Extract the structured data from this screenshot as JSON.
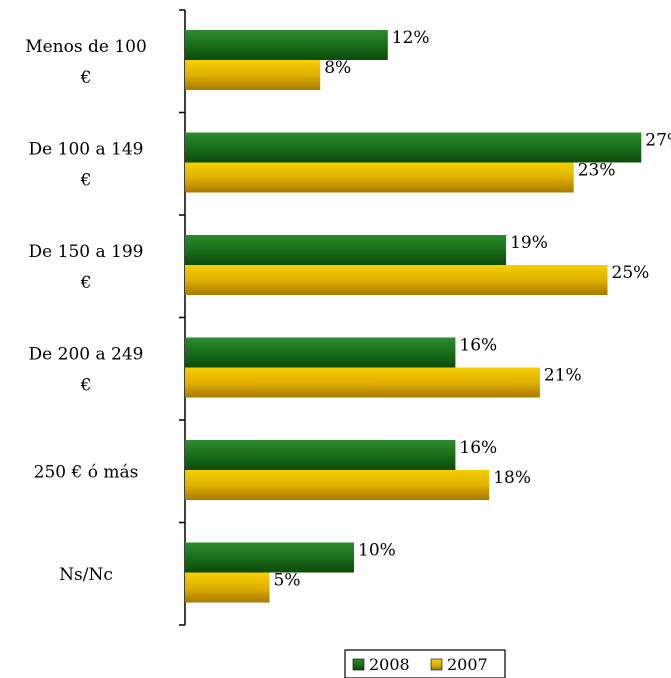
{
  "chart_data": {
    "type": "bar",
    "orientation": "horizontal",
    "title": "",
    "categories": [
      [
        "Menos de 100",
        "€"
      ],
      [
        "De 100 a 149",
        "€"
      ],
      [
        "De 150 a 199",
        "€"
      ],
      [
        "De 200 a 249",
        "€"
      ],
      [
        "250 € ó más"
      ],
      [
        "Ns/Nc"
      ]
    ],
    "series": [
      {
        "name": "2008",
        "values": [
          12,
          27,
          19,
          16,
          16,
          10
        ],
        "color": "#1f7a1f"
      },
      {
        "name": "2007",
        "values": [
          8,
          23,
          25,
          21,
          18,
          5
        ],
        "color": "#e6b800"
      }
    ],
    "value_suffix": "%",
    "xlim": [
      0,
      30
    ],
    "grid": false,
    "legend": "bottom"
  }
}
